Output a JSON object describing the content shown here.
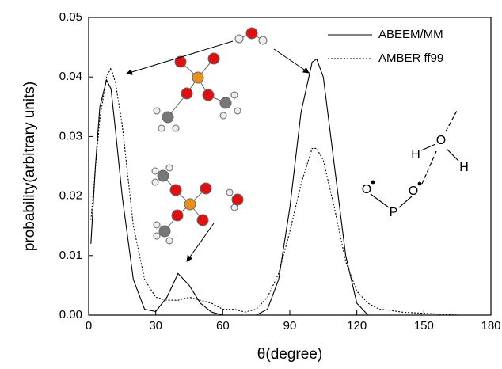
{
  "chart_data": {
    "type": "line",
    "xlabel": "θ(degree)",
    "ylabel": "probability(arbitrary units)",
    "xlim": [
      0,
      180
    ],
    "xticks": [
      0,
      30,
      60,
      90,
      120,
      150,
      180
    ],
    "ylim": [
      0,
      0.05
    ],
    "yticks": [
      {
        "value": 0,
        "label": "0.00"
      },
      0.01,
      0.02,
      0.03,
      0.04,
      0.05
    ],
    "legend": "top-right",
    "series": [
      {
        "name": "ABEEM/MM",
        "color": "#000000",
        "dash": "solid",
        "x": [
          1,
          3,
          5,
          8,
          10,
          12,
          15,
          20,
          25,
          30,
          35,
          40,
          45,
          50,
          55,
          60,
          70,
          75,
          80,
          85,
          90,
          95,
          100,
          102,
          105,
          110,
          115,
          120,
          125,
          140,
          165
        ],
        "values": [
          0.012,
          0.025,
          0.035,
          0.0395,
          0.038,
          0.031,
          0.02,
          0.006,
          0.001,
          0.0006,
          0.003,
          0.007,
          0.005,
          0.002,
          0.0005,
          0,
          0,
          0,
          0.001,
          0.006,
          0.018,
          0.034,
          0.0425,
          0.043,
          0.04,
          0.025,
          0.01,
          0.002,
          0,
          0,
          0
        ]
      },
      {
        "name": "AMBER ff99",
        "color": "#000000",
        "dash": "dotted",
        "x": [
          1,
          5,
          8,
          10,
          12,
          15,
          20,
          25,
          30,
          35,
          40,
          45,
          50,
          55,
          60,
          65,
          70,
          75,
          80,
          85,
          90,
          95,
          100,
          102,
          105,
          110,
          115,
          120,
          125,
          130,
          135,
          140,
          150,
          165
        ],
        "values": [
          0.016,
          0.033,
          0.04,
          0.0415,
          0.039,
          0.032,
          0.015,
          0.006,
          0.003,
          0.0025,
          0.0025,
          0.003,
          0.0025,
          0.002,
          0.001,
          0.001,
          0.0005,
          0.001,
          0.003,
          0.007,
          0.014,
          0.022,
          0.028,
          0.028,
          0.026,
          0.018,
          0.009,
          0.004,
          0.002,
          0.001,
          0.0008,
          0.0005,
          0.0003,
          0
        ]
      }
    ],
    "structure_labels": [
      "H",
      "O",
      "H",
      "O",
      "O",
      "P"
    ]
  }
}
